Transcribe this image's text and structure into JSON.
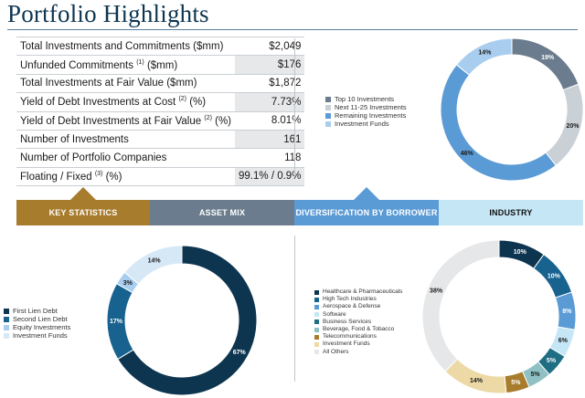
{
  "title": "Portfolio Highlights",
  "stats": [
    {
      "label": "Total Investments and Commitments ($mm)",
      "sup": "",
      "after": "",
      "value": "$2,049"
    },
    {
      "label": "Unfunded Commitments",
      "sup": "(1)",
      "after": " ($mm)",
      "value": "$176"
    },
    {
      "label": "Total Investments at Fair Value ($mm)",
      "sup": "",
      "after": "",
      "value": "$1,872"
    },
    {
      "label": "Yield of Debt Investments at Cost",
      "sup": "(2)",
      "after": " (%)",
      "value": "7.73%"
    },
    {
      "label": "Yield of Debt Investments at Fair Value",
      "sup": "(2)",
      "after": " (%)",
      "value": "8.01%"
    },
    {
      "label": "Number of Investments",
      "sup": "",
      "after": "",
      "value": "161"
    },
    {
      "label": "Number of Portfolio Companies",
      "sup": "",
      "after": "",
      "value": "118"
    },
    {
      "label": "Floating / Fixed",
      "sup": "(3)",
      "after": " (%)",
      "value": "99.1% / 0.9%"
    }
  ],
  "bands": {
    "key_statistics": "KEY STATISTICS",
    "asset_mix": "ASSET MIX",
    "diversification": "DIVERSIFICATION BY BORROWER",
    "industry": "INDUSTRY"
  },
  "chart_data": [
    {
      "id": "borrower",
      "type": "pie",
      "title": "",
      "categories": [
        "Top 10 Investments",
        "Next 11-25 Investments",
        "Remaining Investments",
        "Investment Funds"
      ],
      "values": [
        19,
        20,
        46,
        14
      ],
      "labels": [
        "19%",
        "20%",
        "46%",
        "14%"
      ],
      "colors": [
        "#6b7c8e",
        "#c9d0d6",
        "#5b9bd5",
        "#a9cdef"
      ],
      "label_colors": [
        "#ffffff",
        "#1a1a1a",
        "#1a1a1a",
        "#1a1a1a"
      ],
      "legend_placement": "left"
    },
    {
      "id": "asset_mix",
      "type": "pie",
      "title": "",
      "categories": [
        "First Lien Debt",
        "Second Lien Debt",
        "Equity Investments",
        "Investment Funds"
      ],
      "values": [
        67,
        17,
        3,
        14
      ],
      "labels": [
        "67%",
        "17%",
        "3%",
        "14%"
      ],
      "colors": [
        "#0e3550",
        "#17628f",
        "#a9cdef",
        "#d6e7f6"
      ],
      "label_colors": [
        "#ffffff",
        "#ffffff",
        "#1a1a1a",
        "#1a1a1a"
      ],
      "legend_placement": "left"
    },
    {
      "id": "industry",
      "type": "pie",
      "title": "",
      "categories": [
        "Healthcare & Pharmaceuticals",
        "High Tech Industries",
        "Aerospace & Defense",
        "Software",
        "Business Services",
        "Beverage, Food & Tobacco",
        "Telecommunications",
        "Investment Funds",
        "All Others"
      ],
      "values": [
        10,
        10,
        8,
        6,
        5,
        5,
        5,
        14,
        38
      ],
      "labels": [
        "10%",
        "10%",
        "8%",
        "6%",
        "5%",
        "5%",
        "5%",
        "14%",
        "38%"
      ],
      "colors": [
        "#0e3550",
        "#17628f",
        "#5b9bd5",
        "#c5e6f5",
        "#1f6e83",
        "#8fc1c4",
        "#a77c2d",
        "#ecd9a6",
        "#e6e7e8"
      ],
      "label_colors": [
        "#ffffff",
        "#ffffff",
        "#ffffff",
        "#1a1a1a",
        "#ffffff",
        "#1a1a1a",
        "#ffffff",
        "#1a1a1a",
        "#1a1a1a"
      ],
      "legend_placement": "left"
    }
  ]
}
